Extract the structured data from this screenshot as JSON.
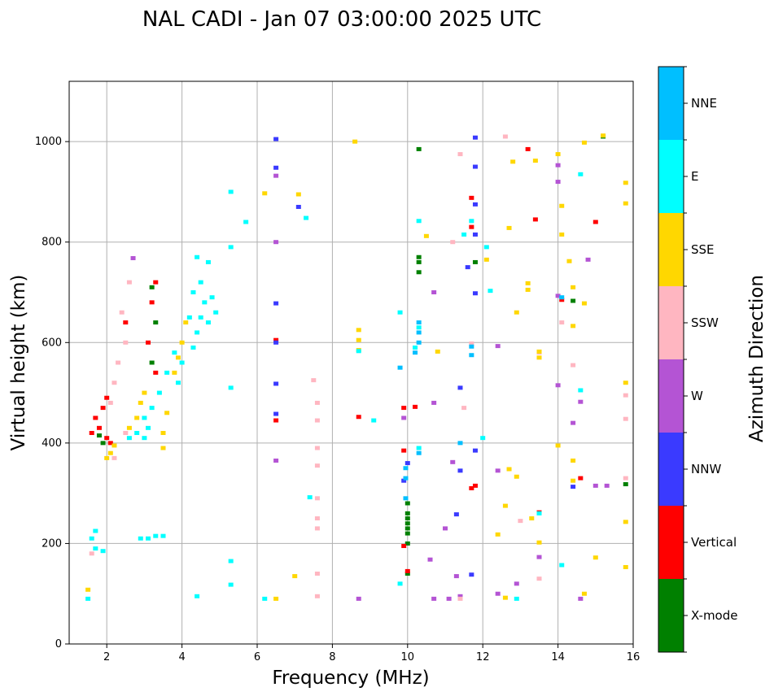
{
  "chart_data": {
    "type": "scatter",
    "title": "NAL CADI - Jan 07 03:00:00 2025 UTC",
    "xlabel": "Frequency (MHz)",
    "ylabel": "Virtual height (km)",
    "xlim": [
      1,
      16
    ],
    "ylim": [
      0,
      1120
    ],
    "xticks": [
      "2",
      "4",
      "6",
      "8",
      "10",
      "12",
      "14",
      "16"
    ],
    "yticks": [
      "0",
      "200",
      "400",
      "600",
      "800",
      "1000"
    ],
    "grid": true,
    "colorbar": {
      "label": "Azimuth Direction",
      "categories": [
        "X-mode",
        "Vertical",
        "NNW",
        "W",
        "SSW",
        "SSE",
        "E",
        "NNE"
      ],
      "colors": [
        "#008000",
        "#ff0000",
        "#3a3aff",
        "#b454d4",
        "#ffb6c1",
        "#ffd700",
        "#00ffff",
        "#00bfff"
      ]
    },
    "series": [
      {
        "name": "X-mode",
        "points": [
          [
            10.0,
            200
          ],
          [
            10.0,
            220
          ],
          [
            10.0,
            240
          ],
          [
            10.0,
            260
          ],
          [
            10.0,
            280
          ],
          [
            10.0,
            250
          ],
          [
            10.0,
            230
          ],
          [
            10.3,
            740
          ],
          [
            10.3,
            760
          ],
          [
            10.3,
            770
          ],
          [
            10.3,
            985
          ],
          [
            10.0,
            140
          ],
          [
            11.8,
            760
          ],
          [
            15.2,
            1010
          ],
          [
            15.8,
            318
          ],
          [
            3.2,
            560
          ],
          [
            3.3,
            640
          ],
          [
            3.2,
            710
          ],
          [
            1.9,
            400
          ],
          [
            1.8,
            415
          ],
          [
            14.4,
            683
          ]
        ]
      },
      {
        "name": "Vertical",
        "points": [
          [
            1.8,
            430
          ],
          [
            1.7,
            450
          ],
          [
            1.9,
            470
          ],
          [
            2.0,
            490
          ],
          [
            1.6,
            420
          ],
          [
            2.0,
            410
          ],
          [
            2.1,
            400
          ],
          [
            3.2,
            680
          ],
          [
            3.3,
            720
          ],
          [
            3.1,
            600
          ],
          [
            3.3,
            540
          ],
          [
            2.5,
            640
          ],
          [
            6.5,
            605
          ],
          [
            6.5,
            445
          ],
          [
            8.7,
            452
          ],
          [
            9.9,
            470
          ],
          [
            10.0,
            145
          ],
          [
            9.9,
            195
          ],
          [
            10.2,
            472
          ],
          [
            11.7,
            888
          ],
          [
            11.7,
            830
          ],
          [
            11.7,
            310
          ],
          [
            11.8,
            315
          ],
          [
            13.2,
            985
          ],
          [
            13.4,
            845
          ],
          [
            13.5,
            262
          ],
          [
            14.1,
            685
          ],
          [
            15.0,
            840
          ],
          [
            14.6,
            330
          ],
          [
            9.9,
            385
          ]
        ]
      },
      {
        "name": "NNW",
        "points": [
          [
            6.5,
            1005
          ],
          [
            6.5,
            948
          ],
          [
            6.5,
            678
          ],
          [
            6.5,
            600
          ],
          [
            6.5,
            518
          ],
          [
            6.5,
            458
          ],
          [
            7.1,
            870
          ],
          [
            11.8,
            1008
          ],
          [
            11.8,
            950
          ],
          [
            11.8,
            875
          ],
          [
            11.8,
            815
          ],
          [
            11.8,
            698
          ],
          [
            11.8,
            385
          ],
          [
            11.4,
            345
          ],
          [
            11.3,
            258
          ],
          [
            11.7,
            138
          ],
          [
            11.6,
            750
          ],
          [
            14.4,
            313
          ],
          [
            9.9,
            325
          ],
          [
            10.0,
            360
          ],
          [
            11.4,
            510
          ]
        ]
      },
      {
        "name": "W",
        "points": [
          [
            6.5,
            932
          ],
          [
            6.5,
            800
          ],
          [
            6.5,
            365
          ],
          [
            8.7,
            90
          ],
          [
            9.9,
            450
          ],
          [
            10.7,
            480
          ],
          [
            10.7,
            700
          ],
          [
            10.7,
            90
          ],
          [
            11.1,
            90
          ],
          [
            11.2,
            362
          ],
          [
            11.3,
            135
          ],
          [
            11.4,
            95
          ],
          [
            12.4,
            345
          ],
          [
            12.4,
            593
          ],
          [
            12.9,
            120
          ],
          [
            13.5,
            173
          ],
          [
            14.0,
            920
          ],
          [
            14.0,
            953
          ],
          [
            14.0,
            693
          ],
          [
            14.4,
            440
          ],
          [
            14.6,
            482
          ],
          [
            14.6,
            90
          ],
          [
            14.8,
            765
          ],
          [
            15.0,
            315
          ],
          [
            15.3,
            315
          ],
          [
            10.6,
            168
          ],
          [
            11.0,
            230
          ],
          [
            14.0,
            515
          ],
          [
            12.4,
            100
          ],
          [
            2.7,
            768
          ]
        ]
      },
      {
        "name": "SSW",
        "points": [
          [
            2.4,
            660
          ],
          [
            2.5,
            600
          ],
          [
            2.3,
            560
          ],
          [
            2.2,
            520
          ],
          [
            2.1,
            480
          ],
          [
            2.6,
            720
          ],
          [
            7.6,
            445
          ],
          [
            7.6,
            390
          ],
          [
            7.6,
            355
          ],
          [
            7.6,
            290
          ],
          [
            7.6,
            250
          ],
          [
            7.6,
            230
          ],
          [
            7.6,
            95
          ],
          [
            7.6,
            140
          ],
          [
            7.6,
            480
          ],
          [
            7.5,
            525
          ],
          [
            11.2,
            800
          ],
          [
            11.4,
            975
          ],
          [
            11.5,
            470
          ],
          [
            11.7,
            598
          ],
          [
            12.6,
            1010
          ],
          [
            13.0,
            245
          ],
          [
            13.5,
            580
          ],
          [
            13.5,
            130
          ],
          [
            14.1,
            640
          ],
          [
            15.8,
            495
          ],
          [
            15.8,
            448
          ],
          [
            15.8,
            330
          ],
          [
            14.4,
            555
          ],
          [
            11.4,
            90
          ],
          [
            1.6,
            180
          ],
          [
            2.5,
            420
          ],
          [
            2.2,
            370
          ]
        ]
      },
      {
        "name": "SSE",
        "points": [
          [
            2.1,
            380
          ],
          [
            2.2,
            395
          ],
          [
            2.0,
            370
          ],
          [
            2.6,
            430
          ],
          [
            2.8,
            450
          ],
          [
            2.9,
            480
          ],
          [
            3.0,
            500
          ],
          [
            3.5,
            420
          ],
          [
            3.6,
            460
          ],
          [
            3.8,
            540
          ],
          [
            3.9,
            570
          ],
          [
            4.0,
            600
          ],
          [
            4.1,
            640
          ],
          [
            3.5,
            390
          ],
          [
            6.2,
            897
          ],
          [
            6.5,
            90
          ],
          [
            7.0,
            135
          ],
          [
            7.1,
            895
          ],
          [
            8.6,
            1000
          ],
          [
            8.7,
            625
          ],
          [
            8.7,
            605
          ],
          [
            8.7,
            585
          ],
          [
            10.5,
            812
          ],
          [
            10.8,
            582
          ],
          [
            12.1,
            765
          ],
          [
            12.7,
            828
          ],
          [
            12.8,
            960
          ],
          [
            12.9,
            660
          ],
          [
            13.2,
            718
          ],
          [
            13.2,
            705
          ],
          [
            13.4,
            962
          ],
          [
            13.5,
            582
          ],
          [
            13.5,
            570
          ],
          [
            13.5,
            202
          ],
          [
            14.0,
            975
          ],
          [
            14.1,
            872
          ],
          [
            14.1,
            815
          ],
          [
            14.3,
            762
          ],
          [
            14.4,
            710
          ],
          [
            14.4,
            365
          ],
          [
            14.4,
            325
          ],
          [
            14.4,
            633
          ],
          [
            14.7,
            998
          ],
          [
            14.7,
            678
          ],
          [
            15.0,
            172
          ],
          [
            15.2,
            1012
          ],
          [
            15.8,
            918
          ],
          [
            15.8,
            877
          ],
          [
            15.8,
            520
          ],
          [
            15.8,
            243
          ],
          [
            15.8,
            153
          ],
          [
            12.4,
            218
          ],
          [
            12.6,
            275
          ],
          [
            13.3,
            250
          ],
          [
            12.7,
            348
          ],
          [
            12.9,
            333
          ],
          [
            1.5,
            108
          ],
          [
            14.0,
            395
          ],
          [
            12.6,
            92
          ],
          [
            14.7,
            100
          ]
        ]
      },
      {
        "name": "E",
        "points": [
          [
            4.2,
            650
          ],
          [
            4.3,
            700
          ],
          [
            4.5,
            720
          ],
          [
            4.6,
            680
          ],
          [
            4.8,
            690
          ],
          [
            4.9,
            660
          ],
          [
            4.4,
            620
          ],
          [
            4.3,
            590
          ],
          [
            4.5,
            650
          ],
          [
            4.7,
            640
          ],
          [
            4.7,
            760
          ],
          [
            4.4,
            770
          ],
          [
            4.0,
            560
          ],
          [
            3.9,
            520
          ],
          [
            3.8,
            580
          ],
          [
            3.6,
            540
          ],
          [
            3.4,
            500
          ],
          [
            3.2,
            470
          ],
          [
            3.0,
            450
          ],
          [
            2.8,
            420
          ],
          [
            2.6,
            410
          ],
          [
            3.0,
            410
          ],
          [
            3.1,
            430
          ],
          [
            3.3,
            215
          ],
          [
            3.5,
            215
          ],
          [
            3.1,
            210
          ],
          [
            2.9,
            210
          ],
          [
            1.7,
            225
          ],
          [
            1.6,
            210
          ],
          [
            1.9,
            185
          ],
          [
            1.7,
            190
          ],
          [
            5.3,
            900
          ],
          [
            5.3,
            790
          ],
          [
            5.3,
            510
          ],
          [
            5.3,
            165
          ],
          [
            5.3,
            118
          ],
          [
            5.7,
            840
          ],
          [
            6.2,
            90
          ],
          [
            7.3,
            848
          ],
          [
            7.4,
            292
          ],
          [
            4.4,
            95
          ],
          [
            8.7,
            583
          ],
          [
            9.1,
            445
          ],
          [
            9.8,
            660
          ],
          [
            9.8,
            120
          ],
          [
            10.3,
            842
          ],
          [
            10.3,
            390
          ],
          [
            11.5,
            815
          ],
          [
            11.7,
            842
          ],
          [
            12.2,
            703
          ],
          [
            12.1,
            790
          ],
          [
            12.0,
            410
          ],
          [
            12.9,
            90
          ],
          [
            13.5,
            260
          ],
          [
            14.1,
            157
          ],
          [
            14.6,
            935
          ],
          [
            14.6,
            505
          ],
          [
            10.2,
            590
          ],
          [
            10.3,
            630
          ],
          [
            1.5,
            90
          ]
        ]
      },
      {
        "name": "NNE",
        "points": [
          [
            10.3,
            620
          ],
          [
            10.3,
            640
          ],
          [
            10.3,
            600
          ],
          [
            10.2,
            580
          ],
          [
            10.3,
            380
          ],
          [
            9.95,
            290
          ],
          [
            9.95,
            330
          ],
          [
            9.95,
            350
          ],
          [
            11.7,
            592
          ],
          [
            11.4,
            400
          ],
          [
            11.7,
            575
          ],
          [
            9.8,
            550
          ],
          [
            14.1,
            690
          ]
        ]
      }
    ]
  }
}
